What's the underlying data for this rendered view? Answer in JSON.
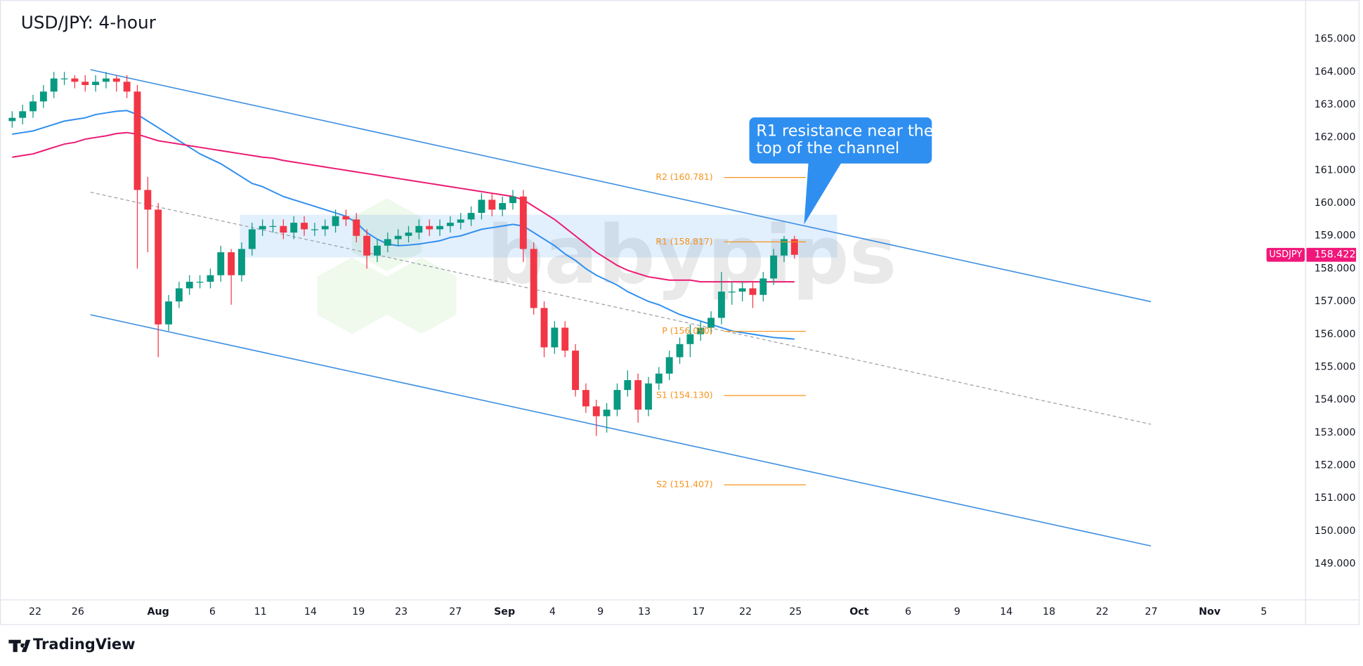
{
  "chart_data": {
    "type": "candlestick",
    "title": "USD/JPY: 4-hour",
    "up_color": "#089981",
    "down_color": "#f23645",
    "open": [
      162.5,
      162.6,
      162.8,
      163.1,
      163.4,
      163.8,
      163.8,
      163.7,
      163.6,
      163.7,
      163.8,
      163.7,
      163.4,
      160.4,
      159.8,
      156.3,
      157.0,
      157.4,
      157.6,
      157.6,
      157.8,
      158.5,
      157.8,
      158.6,
      159.2,
      159.3,
      159.3,
      159.1,
      159.4,
      159.2,
      159.2,
      159.3,
      159.6,
      159.5,
      159.0,
      158.4,
      158.7,
      158.9,
      159.0,
      159.1,
      159.3,
      159.2,
      159.3,
      159.4,
      159.5,
      159.7,
      160.1,
      159.8,
      160.0,
      160.2,
      158.6,
      156.8,
      155.6,
      156.2,
      155.5,
      154.3,
      153.8,
      153.5,
      153.7,
      154.3,
      154.6,
      153.7,
      154.5,
      154.8,
      155.3,
      155.7,
      156.0,
      156.2,
      156.5,
      157.3,
      157.3,
      157.4,
      157.2,
      157.7,
      158.4,
      158.9
    ],
    "high": [
      162.8,
      163.0,
      163.3,
      163.6,
      164.0,
      164.0,
      163.9,
      163.9,
      163.9,
      164.0,
      163.9,
      163.9,
      163.6,
      160.8,
      160.0,
      157.2,
      157.6,
      157.8,
      157.8,
      158.0,
      158.7,
      158.6,
      158.8,
      159.4,
      159.5,
      159.5,
      159.5,
      159.6,
      159.6,
      159.4,
      159.5,
      159.8,
      159.8,
      159.7,
      159.2,
      158.9,
      159.1,
      159.2,
      159.3,
      159.5,
      159.5,
      159.5,
      159.6,
      159.7,
      159.9,
      160.3,
      160.3,
      160.2,
      160.4,
      160.4,
      158.8,
      157.0,
      156.4,
      156.4,
      155.7,
      154.5,
      154.0,
      153.9,
      154.5,
      154.9,
      154.8,
      154.7,
      155.0,
      155.5,
      155.9,
      156.3,
      156.4,
      156.7,
      157.9,
      157.6,
      157.6,
      157.6,
      157.9,
      158.6,
      159.0,
      159.0
    ],
    "low": [
      162.3,
      162.4,
      162.6,
      162.9,
      163.2,
      163.6,
      163.5,
      163.4,
      163.4,
      163.5,
      163.4,
      163.2,
      158.0,
      158.5,
      155.3,
      156.1,
      156.8,
      157.2,
      157.4,
      157.4,
      157.6,
      156.9,
      157.6,
      158.4,
      159.0,
      159.1,
      158.9,
      158.9,
      159.0,
      159.0,
      159.0,
      159.1,
      159.3,
      158.8,
      158.0,
      158.2,
      158.5,
      158.7,
      158.8,
      158.9,
      159.0,
      159.0,
      159.1,
      159.2,
      159.3,
      159.5,
      159.6,
      159.6,
      159.8,
      158.2,
      156.6,
      155.3,
      155.4,
      155.3,
      154.1,
      153.6,
      152.9,
      153.0,
      153.5,
      154.1,
      153.3,
      153.5,
      154.3,
      154.6,
      155.1,
      155.3,
      155.8,
      156.0,
      156.3,
      156.9,
      157.0,
      156.8,
      157.0,
      157.5,
      158.2,
      158.3
    ],
    "close": [
      162.6,
      162.8,
      163.1,
      163.4,
      163.8,
      163.8,
      163.7,
      163.6,
      163.7,
      163.8,
      163.7,
      163.4,
      160.4,
      159.8,
      156.3,
      157.0,
      157.4,
      157.6,
      157.6,
      157.8,
      158.5,
      157.8,
      158.6,
      159.2,
      159.3,
      159.3,
      159.1,
      159.4,
      159.2,
      159.2,
      159.3,
      159.6,
      159.5,
      159.0,
      158.4,
      158.7,
      158.9,
      159.0,
      159.1,
      159.3,
      159.2,
      159.3,
      159.4,
      159.5,
      159.7,
      160.1,
      159.8,
      160.0,
      160.2,
      158.6,
      156.8,
      155.6,
      156.2,
      155.5,
      154.3,
      153.8,
      153.5,
      153.7,
      154.3,
      154.6,
      153.7,
      154.5,
      154.8,
      155.3,
      155.7,
      156.0,
      156.2,
      156.5,
      157.3,
      157.3,
      157.4,
      157.2,
      157.7,
      158.4,
      158.9,
      158.422
    ],
    "overlays": [
      {
        "color": "#2f8ff0",
        "values": [
          162.1,
          162.15,
          162.2,
          162.3,
          162.4,
          162.5,
          162.55,
          162.6,
          162.7,
          162.75,
          162.8,
          162.82,
          162.7,
          162.5,
          162.3,
          162.1,
          161.9,
          161.7,
          161.5,
          161.35,
          161.2,
          161.0,
          160.8,
          160.6,
          160.5,
          160.35,
          160.2,
          160.1,
          160.0,
          159.9,
          159.8,
          159.7,
          159.6,
          159.4,
          159.1,
          158.9,
          158.75,
          158.7,
          158.72,
          158.75,
          158.8,
          158.85,
          158.95,
          159.0,
          159.1,
          159.2,
          159.25,
          159.3,
          159.35,
          159.3,
          159.1,
          158.9,
          158.7,
          158.45,
          158.25,
          158.0,
          157.8,
          157.65,
          157.5,
          157.3,
          157.15,
          157.0,
          156.9,
          156.75,
          156.6,
          156.5,
          156.4,
          156.3,
          156.2,
          156.1,
          156.05,
          156.0,
          155.95,
          155.9,
          155.88,
          155.85
        ]
      },
      {
        "color": "#ec1a72",
        "values": [
          161.4,
          161.45,
          161.5,
          161.6,
          161.7,
          161.8,
          161.85,
          161.95,
          162.0,
          162.05,
          162.12,
          162.15,
          162.1,
          162.0,
          161.9,
          161.85,
          161.8,
          161.75,
          161.7,
          161.65,
          161.6,
          161.55,
          161.5,
          161.45,
          161.4,
          161.37,
          161.3,
          161.25,
          161.2,
          161.15,
          161.1,
          161.05,
          161.0,
          160.95,
          160.9,
          160.85,
          160.8,
          160.75,
          160.7,
          160.65,
          160.6,
          160.55,
          160.5,
          160.45,
          160.4,
          160.35,
          160.3,
          160.25,
          160.2,
          160.1,
          159.9,
          159.7,
          159.5,
          159.25,
          159.0,
          158.75,
          158.5,
          158.3,
          158.1,
          157.95,
          157.85,
          157.75,
          157.7,
          157.65,
          157.65,
          157.65,
          157.6,
          157.6,
          157.6,
          157.6,
          157.6,
          157.6,
          157.6,
          157.6,
          157.6,
          157.6
        ]
      }
    ],
    "pivots": [
      {
        "label": "R2 (160.781)",
        "value": 160.781
      },
      {
        "label": "R1 (158.817)",
        "value": 158.817
      },
      {
        "label": "P (156.090)",
        "value": 156.09
      },
      {
        "label": "S1 (154.130)",
        "value": 154.13
      },
      {
        "label": "S2 (151.407)",
        "value": 151.407
      }
    ],
    "pivot_color": "#f7931a",
    "symbol": "USDJPY",
    "last": 158.422,
    "last_color": "#f0177a",
    "annotation": [
      "R1 resistance near the",
      "top of the channel"
    ],
    "watermark": "babypips",
    "footer": "TradingView",
    "xlim": [
      -0.5,
      124
    ],
    "xticks": [
      {
        "value": 2.2,
        "label": "22"
      },
      {
        "value": 6.3,
        "label": "26"
      },
      {
        "value": 14,
        "label": "Aug"
      },
      {
        "value": 19.2,
        "label": "6"
      },
      {
        "value": 23.8,
        "label": "11"
      },
      {
        "value": 28.6,
        "label": "14"
      },
      {
        "value": 33.2,
        "label": "19"
      },
      {
        "value": 37.3,
        "label": "23"
      },
      {
        "value": 42.5,
        "label": "27"
      },
      {
        "value": 47.2,
        "label": "Sep"
      },
      {
        "value": 51.8,
        "label": "4"
      },
      {
        "value": 56.4,
        "label": "9"
      },
      {
        "value": 60.6,
        "label": "13"
      },
      {
        "value": 65.8,
        "label": "17"
      },
      {
        "value": 70.3,
        "label": "22"
      },
      {
        "value": 75.1,
        "label": "25"
      },
      {
        "value": 81.2,
        "label": "Oct"
      },
      {
        "value": 85.9,
        "label": "6"
      },
      {
        "value": 90.6,
        "label": "9"
      },
      {
        "value": 95.3,
        "label": "14"
      },
      {
        "value": 99.4,
        "label": "18"
      },
      {
        "value": 104.5,
        "label": "22"
      },
      {
        "value": 109.2,
        "label": "27"
      },
      {
        "value": 114.8,
        "label": "Nov"
      },
      {
        "value": 120,
        "label": "5"
      }
    ],
    "ylim": [
      147.9,
      166.19
    ],
    "yticks": [
      {
        "value": 149,
        "label": "149.000"
      },
      {
        "value": 150,
        "label": "150.000"
      },
      {
        "value": 151,
        "label": "151.000"
      },
      {
        "value": 152,
        "label": "152.000"
      },
      {
        "value": 153,
        "label": "153.000"
      },
      {
        "value": 154,
        "label": "154.000"
      },
      {
        "value": 155,
        "label": "155.000"
      },
      {
        "value": 156,
        "label": "156.000"
      },
      {
        "value": 157,
        "label": "157.000"
      },
      {
        "value": 158,
        "label": "158.000"
      },
      {
        "value": 159,
        "label": "159.000"
      },
      {
        "value": 160,
        "label": "160.000"
      },
      {
        "value": 161,
        "label": "161.000"
      },
      {
        "value": 162,
        "label": "162.000"
      },
      {
        "value": 163,
        "label": "163.000"
      },
      {
        "value": 164,
        "label": "164.000"
      },
      {
        "value": 165,
        "label": "165.000"
      }
    ]
  }
}
